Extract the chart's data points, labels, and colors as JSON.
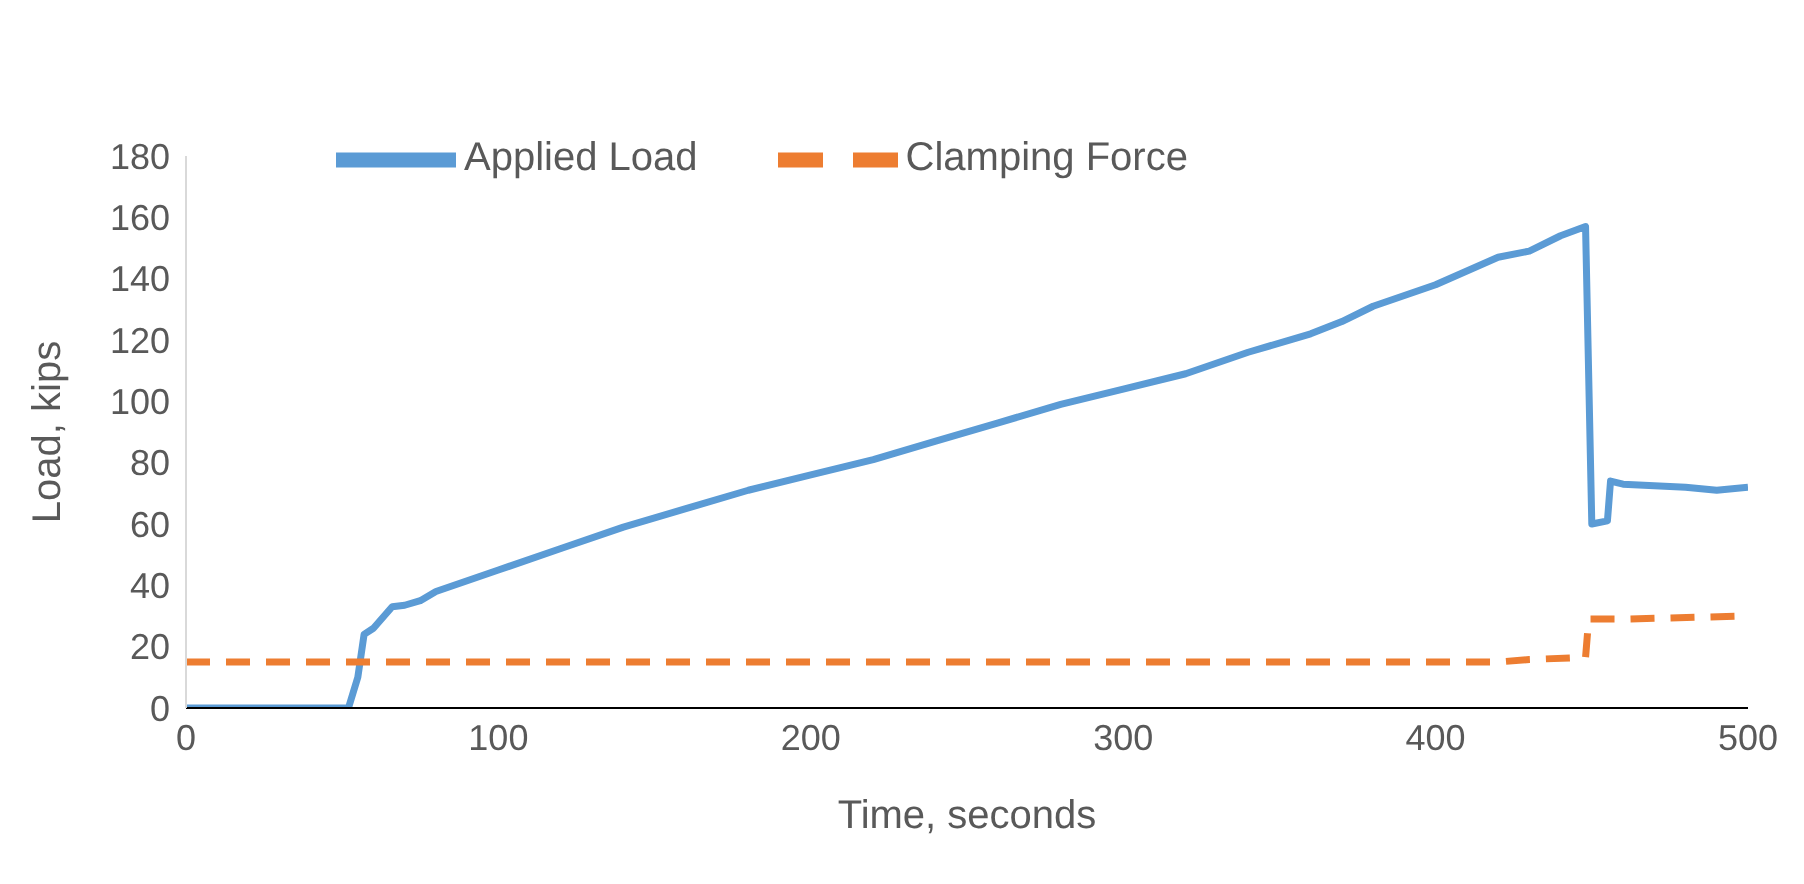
{
  "chart_data": {
    "type": "line",
    "xlabel": "Time, seconds",
    "ylabel": "Load, kips",
    "xlim": [
      0,
      500
    ],
    "xticks": [
      0,
      100,
      200,
      300,
      400,
      500
    ],
    "ylim": [
      0,
      180
    ],
    "yticks": [
      0,
      20,
      40,
      60,
      80,
      100,
      120,
      140,
      160,
      180
    ],
    "grid": false,
    "legend": "top left",
    "marker": "none",
    "series": [
      {
        "name": "Applied Load",
        "color": "#5b9bd5",
        "line_style": "solid",
        "x": [
          0,
          52,
          55,
          57,
          60,
          66,
          70,
          75,
          80,
          100,
          120,
          140,
          160,
          180,
          200,
          220,
          240,
          260,
          280,
          300,
          320,
          340,
          360,
          370,
          380,
          400,
          420,
          430,
          440,
          448,
          450,
          455,
          456,
          460,
          480,
          490,
          500
        ],
        "values": [
          0,
          0,
          10,
          24,
          26,
          33,
          33.5,
          35,
          38,
          45,
          52,
          59,
          65,
          71,
          76,
          81,
          87,
          93,
          99,
          104,
          109,
          116,
          122,
          126,
          131,
          138,
          147,
          149,
          154,
          157,
          60,
          61,
          74,
          73,
          72,
          71,
          72
        ]
      },
      {
        "name": "Clamping Force",
        "color": "#ed7d31",
        "line_style": "dashed",
        "x": [
          0,
          420,
          430,
          447,
          448,
          449,
          460,
          500
        ],
        "values": [
          15,
          15,
          15.8,
          16.5,
          16.5,
          29,
          29,
          30
        ]
      }
    ]
  }
}
